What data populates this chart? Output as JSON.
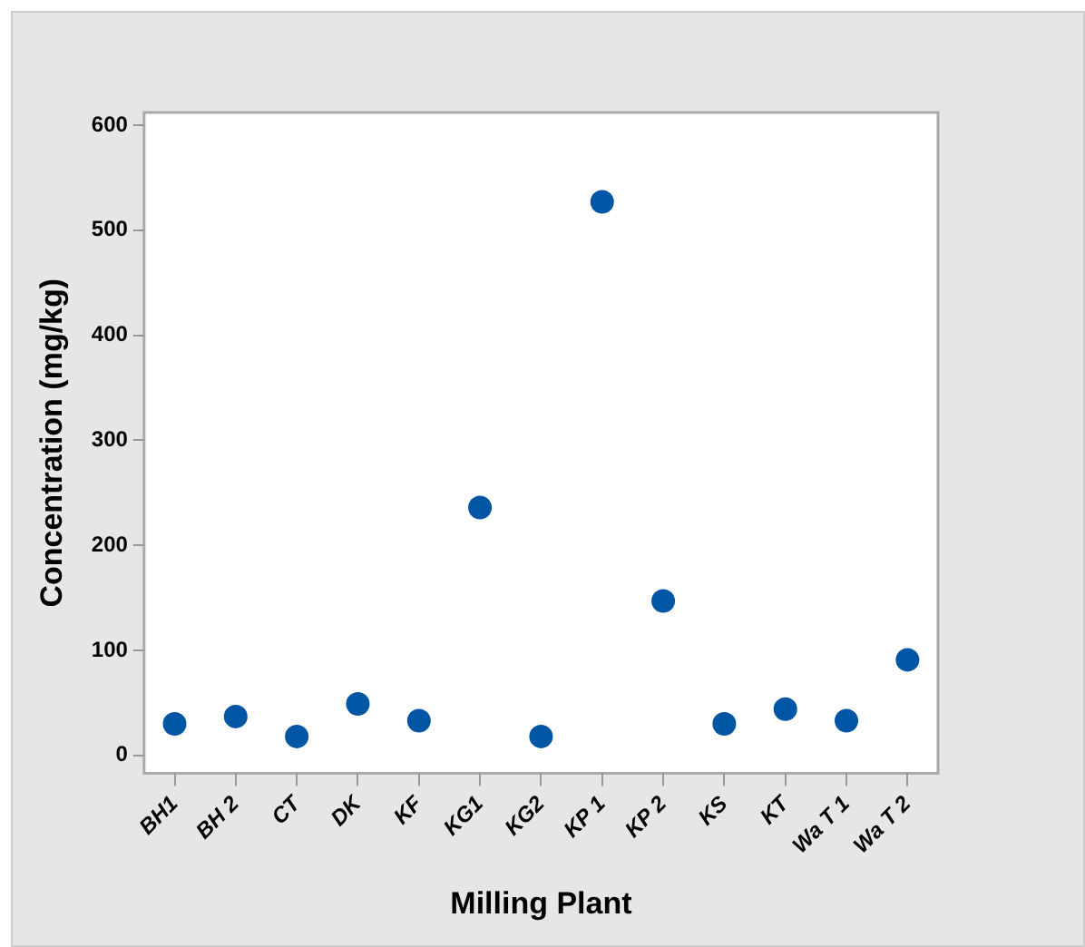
{
  "chart_data": {
    "type": "scatter",
    "xlabel": "Milling Plant",
    "ylabel": "Concentration (mg/kg)",
    "categories": [
      "BH1",
      "BH 2",
      "CT",
      "DK",
      "KF",
      "KG1",
      "KG2",
      "KP 1",
      "KP 2",
      "KS",
      "KT",
      "Wa T 1",
      "Wa T 2"
    ],
    "series": [
      {
        "color": "#0055a5",
        "values": [
          30,
          37,
          18,
          49,
          33,
          236,
          18,
          527,
          147,
          30,
          44,
          33,
          91
        ]
      }
    ],
    "ylim": [
      -17,
      612
    ],
    "yticks": [
      0,
      100,
      200,
      300,
      400,
      500,
      600
    ],
    "grid": false,
    "legend": false,
    "marker": "circle"
  }
}
